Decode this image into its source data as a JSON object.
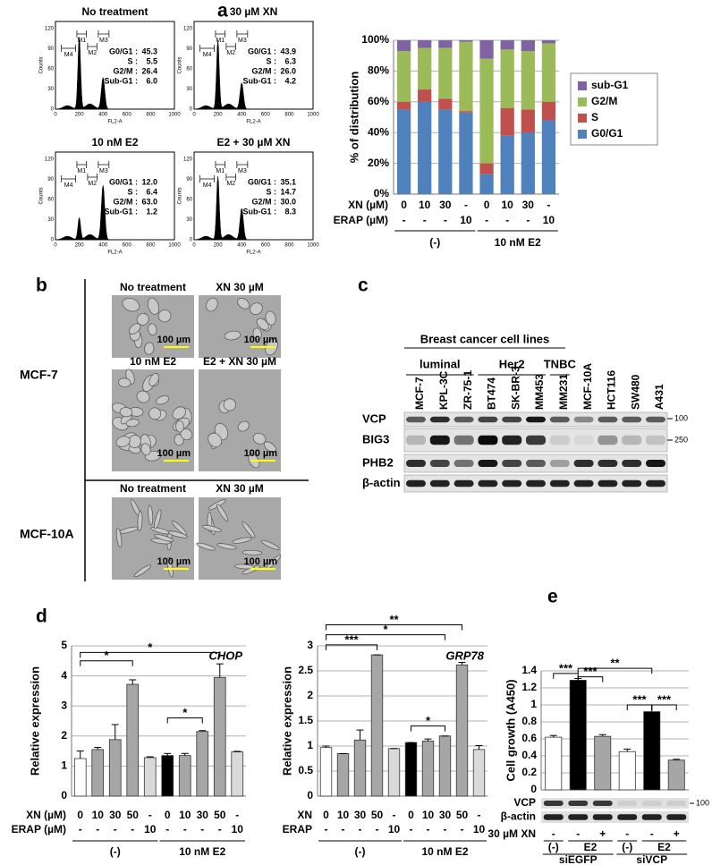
{
  "panel_labels": [
    "a",
    "b",
    "c",
    "d",
    "e"
  ],
  "panel_a": {
    "histograms": [
      {
        "title": "No treatment",
        "stats": [
          {
            "label": "G0/G1 :",
            "value": "45.3"
          },
          {
            "label": "S :",
            "value": "5.5"
          },
          {
            "label": "G2/M :",
            "value": "26.4"
          },
          {
            "label": "Sub-G1 :",
            "value": "6.0"
          }
        ]
      },
      {
        "title": "30 µM XN",
        "stats": [
          {
            "label": "G0/G1 :",
            "value": "43.9"
          },
          {
            "label": "S :",
            "value": "6.3"
          },
          {
            "label": "G2/M :",
            "value": "26.0"
          },
          {
            "label": "Sub-G1 :",
            "value": "4.2"
          }
        ]
      },
      {
        "title": "10 nM E2",
        "stats": [
          {
            "label": "G0/G1 :",
            "value": "12.0"
          },
          {
            "label": "S :",
            "value": "6.4"
          },
          {
            "label": "G2/M :",
            "value": "63.0"
          },
          {
            "label": "Sub-G1 :",
            "value": "1.2"
          }
        ]
      },
      {
        "title": "E2 + 30 µM XN",
        "stats": [
          {
            "label": "G0/G1 :",
            "value": "35.1"
          },
          {
            "label": "S :",
            "value": "14.7"
          },
          {
            "label": "G2/M :",
            "value": "30.0"
          },
          {
            "label": "Sub-G1 :",
            "value": "8.3"
          }
        ]
      }
    ],
    "hist_xlabel": "FL2-A",
    "hist_ylabel": "Counts",
    "hist_xticks": [
      "0",
      "200",
      "400",
      "600",
      "800",
      "1000"
    ],
    "hist_yticks": [
      "0",
      "30",
      "60",
      "90",
      "120"
    ],
    "gates": [
      "M1",
      "M2",
      "M3",
      "M4"
    ]
  },
  "panel_b": {
    "cell_lines": [
      "MCF-7",
      "MCF-10A"
    ],
    "images": [
      {
        "title": "No treatment",
        "scale": "100 µm"
      },
      {
        "title": "XN 30 µM",
        "scale": "100 µm"
      },
      {
        "title": "10 nM E2",
        "scale": "100 µm"
      },
      {
        "title": "E2 + XN 30 µM",
        "scale": "100 µm"
      },
      {
        "title": "No treatment",
        "scale": "100 µm"
      },
      {
        "title": "XN 30 µM",
        "scale": "100 µm"
      }
    ]
  },
  "panel_c": {
    "header": "Breast cancer cell lines",
    "subgroups": [
      "luminal",
      "Her2",
      "TNBC"
    ],
    "lanes": [
      "MCF-7",
      "KPL-3C",
      "ZR-75-1",
      "BT474",
      "SK-BR-3",
      "MM453",
      "MM231",
      "MCF-10A",
      "HCT116",
      "SW480",
      "A431"
    ],
    "rows": [
      "VCP",
      "BIG3",
      "PHB2",
      "β-actin"
    ],
    "markers": [
      "100",
      "250"
    ]
  },
  "chart_data": [
    {
      "type": "stacked_bar",
      "categories": [
        "0",
        "10",
        "30",
        "-",
        "0",
        "10",
        "30",
        "-"
      ],
      "category_label": "XN (µM)",
      "sublabel_label": "ERAP (µM)",
      "sublabels": [
        "-",
        "-",
        "-",
        "10",
        "-",
        "-",
        "-",
        "10"
      ],
      "groups": [
        "(-)",
        "10 nM E2"
      ],
      "ylabel": "% of distribution",
      "ylim": [
        0,
        100
      ],
      "yticks": [
        {
          "value": 0,
          "label": "0%"
        },
        {
          "value": 20,
          "label": "20%"
        },
        {
          "value": 40,
          "label": "40%"
        },
        {
          "value": 60,
          "label": "60%"
        },
        {
          "value": 80,
          "label": "80%"
        },
        {
          "value": 100,
          "label": "100%"
        }
      ],
      "grid": true,
      "legend": "right",
      "series": [
        {
          "name": "G0/G1",
          "color": "#4f81bd",
          "values": [
            55,
            60,
            55,
            53,
            13,
            38,
            40,
            48
          ]
        },
        {
          "name": "S",
          "color": "#c0504d",
          "values": [
            5,
            8,
            7,
            1,
            7,
            18,
            15,
            12
          ]
        },
        {
          "name": "G2/M",
          "color": "#9bbb59",
          "values": [
            33,
            27,
            33,
            45,
            68,
            38,
            38,
            38
          ]
        },
        {
          "name": "sub-G1",
          "color": "#8064a2",
          "values": [
            7,
            5,
            5,
            1,
            12,
            6,
            7,
            2
          ]
        }
      ]
    },
    {
      "type": "bar",
      "annotation": "CHOP",
      "categories": [
        "0",
        "10",
        "30",
        "50",
        "-",
        "0",
        "10",
        "30",
        "50",
        "-"
      ],
      "category_label": "XN (µM)",
      "sublabel_label": "ERAP (µM)",
      "sublabels": [
        "-",
        "-",
        "-",
        "-",
        "10",
        "-",
        "-",
        "-",
        "-",
        "10"
      ],
      "groups": [
        "(-)",
        "10 nM E2"
      ],
      "ylabel": "Relative expression",
      "ylim": [
        0,
        5
      ],
      "yticks": [
        0,
        1,
        2,
        3,
        4,
        5
      ],
      "grid": true,
      "values": [
        1.25,
        1.55,
        1.88,
        3.72,
        1.28,
        1.35,
        1.35,
        2.15,
        3.95,
        1.47
      ],
      "errors": [
        0.25,
        0.07,
        0.5,
        0.15,
        0.03,
        0.07,
        0.07,
        0.03,
        0.45,
        0.02
      ],
      "colors": [
        "#ffffff",
        "#a6a6a6",
        "#a6a6a6",
        "#a6a6a6",
        "#d9d9d9",
        "#000000",
        "#a6a6a6",
        "#a6a6a6",
        "#a6a6a6",
        "#d9d9d9"
      ],
      "significance": [
        "*",
        "*",
        "*"
      ]
    },
    {
      "type": "bar",
      "annotation": "GRP78",
      "categories": [
        "0",
        "10",
        "30",
        "50",
        "-",
        "0",
        "10",
        "30",
        "50",
        "-"
      ],
      "category_label": "XN",
      "sublabel_label": "ERAP",
      "sublabels": [
        "-",
        "-",
        "-",
        "-",
        "10",
        "-",
        "-",
        "-",
        "-",
        "10"
      ],
      "groups": [
        "(-)",
        "10 nM E2"
      ],
      "ylabel": "Relative expression",
      "ylim": [
        0,
        3
      ],
      "yticks": [
        0,
        0.5,
        1,
        1.5,
        2,
        2.5,
        3
      ],
      "grid": true,
      "values": [
        0.97,
        0.85,
        1.12,
        2.82,
        0.95,
        1.07,
        1.1,
        1.2,
        2.62,
        0.93
      ],
      "errors": [
        0.03,
        0,
        0.2,
        0,
        0,
        0,
        0.04,
        0,
        0.05,
        0.08
      ],
      "colors": [
        "#ffffff",
        "#a6a6a6",
        "#a6a6a6",
        "#a6a6a6",
        "#d9d9d9",
        "#000000",
        "#a6a6a6",
        "#a6a6a6",
        "#a6a6a6",
        "#d9d9d9"
      ],
      "significance": [
        "**",
        "*",
        "***",
        "*"
      ]
    },
    {
      "type": "bar",
      "categories": [
        "-",
        "-",
        "+",
        "-",
        "-",
        "+"
      ],
      "category_label": "30 µM XN",
      "treatments": [
        "(-)",
        "E2",
        "(-)",
        "E2"
      ],
      "groups": [
        "siEGFP",
        "siVCP"
      ],
      "blots": [
        "VCP",
        "β-actin"
      ],
      "marker": "100",
      "ylabel": "Cell growth (A450)",
      "ylim": [
        0,
        1.4
      ],
      "yticks": [
        0,
        0.2,
        0.4,
        0.6,
        0.8,
        1,
        1.2,
        1.4
      ],
      "grid": true,
      "values": [
        0.62,
        1.29,
        0.63,
        0.45,
        0.92,
        0.35
      ],
      "errors": [
        0.02,
        0.02,
        0.02,
        0.03,
        0.08,
        0.01
      ],
      "colors": [
        "#ffffff",
        "#000000",
        "#a6a6a6",
        "#ffffff",
        "#000000",
        "#a6a6a6"
      ],
      "significance": [
        "***",
        "***",
        "**",
        "***",
        "***"
      ]
    }
  ]
}
